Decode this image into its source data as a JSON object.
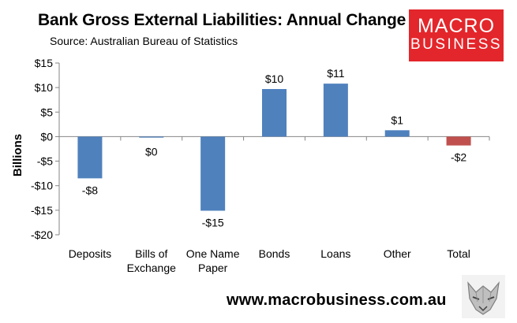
{
  "header": {
    "title": "Bank Gross External Liabilities: Annual Change",
    "subtitle": "Source: Australian Bureau of Statistics"
  },
  "logo": {
    "line1": "MACRO",
    "line2": "BUSINESS"
  },
  "footer": {
    "url": "www.macrobusiness.com.au"
  },
  "colors": {
    "positive_bar": "#4f81bd",
    "total_bar": "#c0504d",
    "gridline": "#d9d9d9",
    "logo_bg": "#e3262b"
  },
  "chart_data": {
    "type": "bar",
    "title": "Bank Gross External Liabilities: Annual Change",
    "ylabel": "Billions",
    "xlabel": "",
    "categories": [
      [
        "Deposits"
      ],
      [
        "Bills of",
        "Exchange"
      ],
      [
        "One Name",
        "Paper"
      ],
      [
        "Bonds"
      ],
      [
        "Loans"
      ],
      [
        "Other"
      ],
      [
        "Total"
      ]
    ],
    "values": [
      -8.5,
      -0.2,
      -15.1,
      9.7,
      10.8,
      1.3,
      -1.8
    ],
    "data_labels": [
      "-$8",
      "$0",
      "-$15",
      "$10",
      "$11",
      "$1",
      "-$2"
    ],
    "ylim": [
      -20,
      15
    ],
    "yticks": [
      15,
      10,
      5,
      0,
      -5,
      -10,
      -15,
      -20
    ],
    "ytick_labels": [
      "$15",
      "$10",
      "$5",
      "$0",
      "-$5",
      "-$10",
      "-$15",
      "-$20"
    ],
    "grid": false,
    "legend": "none"
  }
}
